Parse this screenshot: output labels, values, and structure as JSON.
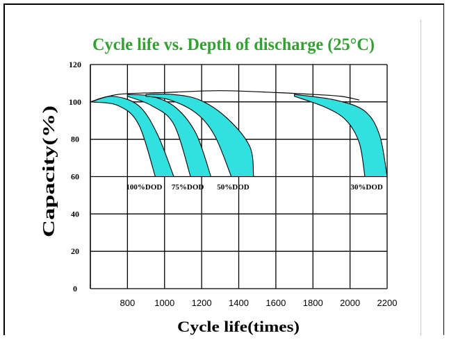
{
  "chart_data": {
    "type": "area",
    "title": "Cycle life vs. Depth of discharge (25°C)",
    "xlabel": "Cycle life(times)",
    "ylabel": "Capacity(%)",
    "xlim": [
      600,
      2200
    ],
    "ylim": [
      0,
      120
    ],
    "x_ticks": [
      800,
      1000,
      1200,
      1400,
      1600,
      1800,
      2000,
      2200
    ],
    "y_ticks": [
      0,
      20,
      40,
      60,
      80,
      100,
      120
    ],
    "grid": true,
    "fill_color": "#33e0e0",
    "series": [
      {
        "name": "100%DOD",
        "lower": [
          [
            600,
            100
          ],
          [
            750,
            98
          ],
          [
            860,
            88
          ],
          [
            950,
            60
          ]
        ],
        "upper": [
          [
            600,
            100
          ],
          [
            720,
            103
          ],
          [
            860,
            98
          ],
          [
            960,
            83
          ],
          [
            1050,
            60
          ]
        ],
        "label_x": 890
      },
      {
        "name": "75%DOD",
        "lower": [
          [
            800,
            103
          ],
          [
            930,
            98
          ],
          [
            1050,
            88
          ],
          [
            1140,
            60
          ]
        ],
        "upper": [
          [
            800,
            104
          ],
          [
            930,
            103
          ],
          [
            1060,
            97
          ],
          [
            1170,
            83
          ],
          [
            1250,
            60
          ]
        ],
        "label_x": 1125
      },
      {
        "name": "50%DOD",
        "lower": [
          [
            900,
            103
          ],
          [
            1030,
            101
          ],
          [
            1170,
            94
          ],
          [
            1270,
            82
          ],
          [
            1360,
            60
          ]
        ],
        "upper": [
          [
            900,
            104
          ],
          [
            1040,
            104
          ],
          [
            1190,
            101
          ],
          [
            1340,
            91
          ],
          [
            1460,
            76
          ],
          [
            1480,
            60
          ]
        ],
        "label_x": 1370
      },
      {
        "name": "30%DOD",
        "lower": [
          [
            1700,
            103
          ],
          [
            1870,
            97
          ],
          [
            1980,
            90
          ],
          [
            2050,
            78
          ],
          [
            2080,
            60
          ]
        ],
        "upper": [
          [
            1700,
            104
          ],
          [
            1920,
            101
          ],
          [
            2080,
            95
          ],
          [
            2160,
            82
          ],
          [
            2200,
            60
          ]
        ],
        "label_x": 2090
      }
    ],
    "envelope": [
      [
        600,
        100
      ],
      [
        750,
        104
      ],
      [
        1000,
        105
      ],
      [
        1300,
        106
      ],
      [
        1600,
        105
      ],
      [
        1800,
        104
      ],
      [
        1950,
        103
      ],
      [
        2050,
        101
      ]
    ]
  }
}
